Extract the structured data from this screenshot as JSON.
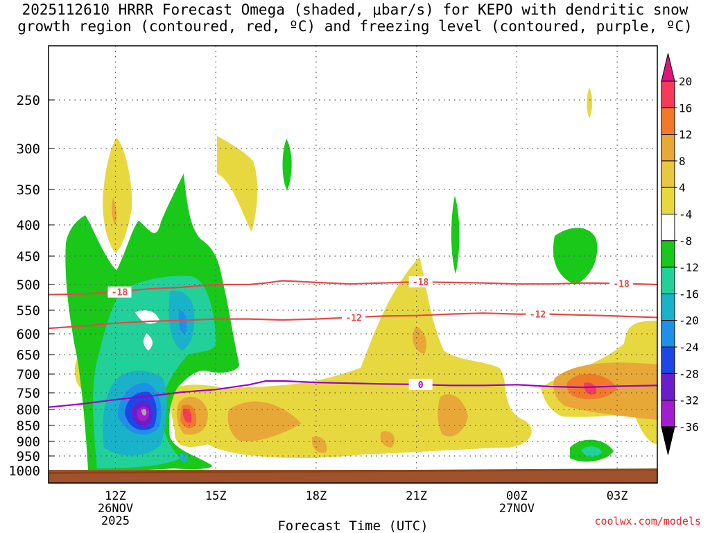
{
  "title": "2025112610 HRRR Forecast Omega (shaded, μbar/s) for KEPO with dendritic snow growth region (contoured, red, ºC) and freezing level (contoured, purple, ºC)",
  "credit": "coolwx.com/models",
  "chart_data": {
    "type": "heatmap",
    "xlabel": "Forecast Time (UTC)",
    "ylabel": "",
    "x_range_hours_since_06z": [
      4,
      22.2
    ],
    "y_range_mb": [
      1000,
      200
    ],
    "x_ticks": [
      {
        "hour": 6,
        "label": "12Z",
        "date": "26NOV",
        "year": "2025"
      },
      {
        "hour": 9,
        "label": "15Z",
        "date": "",
        "year": ""
      },
      {
        "hour": 12,
        "label": "18Z",
        "date": "",
        "year": ""
      },
      {
        "hour": 15,
        "label": "21Z",
        "date": "",
        "year": ""
      },
      {
        "hour": 18,
        "label": "00Z",
        "date": "27NOV",
        "year": ""
      },
      {
        "hour": 21,
        "label": "03Z",
        "date": "",
        "year": ""
      }
    ],
    "y_ticks": [
      250,
      300,
      350,
      400,
      450,
      500,
      550,
      600,
      650,
      700,
      750,
      800,
      850,
      900,
      950,
      1000
    ],
    "colorbar": {
      "labels": [
        "20",
        "16",
        "12",
        "8",
        "4",
        "-4",
        "-8",
        "-12",
        "-16",
        "-20",
        "-24",
        "-28",
        "-32",
        "-36"
      ],
      "colors": [
        "#f23c5a",
        "#f07a2a",
        "#e8a838",
        "#e8c840",
        "#e8d840",
        "#ffffff",
        "#19c819",
        "#22d09a",
        "#1ab2c8",
        "#1e90e8",
        "#1e46e6",
        "#6a1ec8",
        "#a01ecc",
        "#a8a8a8"
      ],
      "top_arrow": "#e0157a",
      "bottom_arrow": "#000000"
    },
    "contours": [
      {
        "name": "dgz -18",
        "color": "#e8464a",
        "label": "-18",
        "points_mb": [
          [
            4,
            519
          ],
          [
            5,
            518
          ],
          [
            6,
            514
          ],
          [
            7,
            508
          ],
          [
            8,
            505
          ],
          [
            9,
            500
          ],
          [
            10,
            500
          ],
          [
            10.5,
            497
          ],
          [
            11,
            493
          ],
          [
            12,
            496
          ],
          [
            13,
            499
          ],
          [
            14,
            497
          ],
          [
            15,
            495
          ],
          [
            16,
            496
          ],
          [
            17,
            497
          ],
          [
            18,
            499
          ],
          [
            19,
            499
          ],
          [
            20,
            497
          ],
          [
            21,
            498
          ],
          [
            22.2,
            500
          ]
        ]
      },
      {
        "name": "dgz -12",
        "color": "#e8464a",
        "label": "-12",
        "points_mb": [
          [
            4,
            588
          ],
          [
            5,
            583
          ],
          [
            6,
            577
          ],
          [
            7,
            573
          ],
          [
            8,
            571
          ],
          [
            9,
            568
          ],
          [
            10,
            568
          ],
          [
            11,
            570
          ],
          [
            12,
            568
          ],
          [
            13,
            565
          ],
          [
            14,
            562
          ],
          [
            15,
            561
          ],
          [
            16,
            558
          ],
          [
            17,
            556
          ],
          [
            18,
            558
          ],
          [
            19,
            558
          ],
          [
            20,
            560
          ],
          [
            21,
            562
          ],
          [
            22.2,
            565
          ]
        ]
      },
      {
        "name": "freezing level 0",
        "color": "#9900cc",
        "label": "0",
        "points_mb": [
          [
            4,
            793
          ],
          [
            5,
            783
          ],
          [
            6,
            770
          ],
          [
            7,
            760
          ],
          [
            8,
            748
          ],
          [
            9,
            741
          ],
          [
            10,
            728
          ],
          [
            10.5,
            718
          ],
          [
            11,
            718
          ],
          [
            12,
            722
          ],
          [
            13,
            724
          ],
          [
            14,
            726
          ],
          [
            15,
            727
          ],
          [
            16,
            730
          ],
          [
            17,
            730
          ],
          [
            18,
            728
          ],
          [
            19,
            733
          ],
          [
            20,
            735
          ],
          [
            21,
            732
          ],
          [
            22.2,
            730
          ]
        ]
      }
    ],
    "shaded_regions": [
      {
        "level": "-4 to -8",
        "color": "#19c819",
        "desc": "large updraft area 10Z-15Z, 400-1000 mb"
      },
      {
        "level": "-8 to -12",
        "color": "#22d09a",
        "desc": "11Z-14Z, 490-1000 mb"
      },
      {
        "level": "-12 to -16",
        "color": "#1ab2c8",
        "desc": "around 12-13Z, 700-950 mb and 14Z near 550 mb"
      },
      {
        "level": "-16 to -32",
        "color": "#1e46e6",
        "desc": "core near 13Z 800 mb, min below -32"
      },
      {
        "level": "4 to 8",
        "color": "#e8d840",
        "desc": "sinking air 14Z-03Z low levels and 20Z-22Z mid levels"
      },
      {
        "level": "8 to 20",
        "color": "#f07a2a",
        "desc": "max near 14Z 820 mb and 02Z 745 mb"
      }
    ],
    "ground_color": "#a0522d"
  }
}
